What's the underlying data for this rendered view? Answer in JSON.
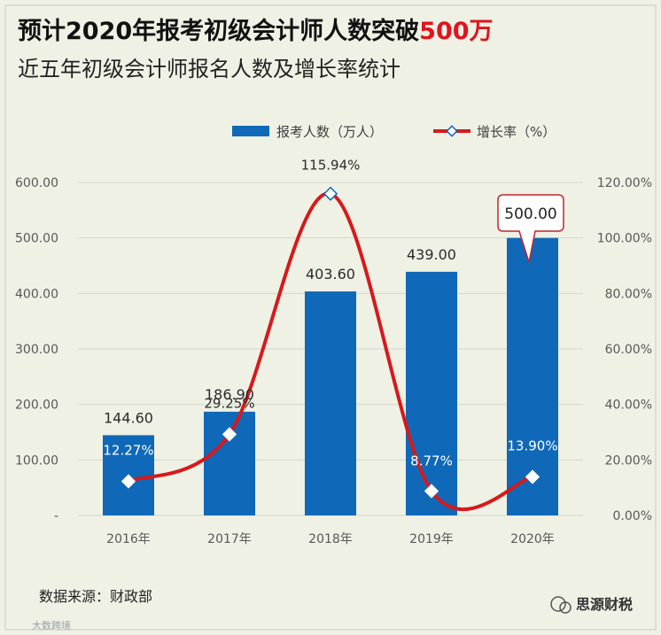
{
  "title": {
    "line1_prefix": "预计2020年报考初级会计师人数突破",
    "line1_highlight": "500万",
    "line2": "近五年初级会计师报名人数及增长率统计"
  },
  "source_note": "数据来源：财政部",
  "watermark_brand": "思源财税",
  "watermark_corner": "大数跨境",
  "callout_value": "500.00",
  "colors": {
    "bar": "#1068b8",
    "line": "#d7191c",
    "highlight": "#e0141e",
    "background": "#eef1e4"
  },
  "chart_data": {
    "type": "bar",
    "categories": [
      "2016年",
      "2017年",
      "2018年",
      "2019年",
      "2020年"
    ],
    "series": [
      {
        "name": "报考人数（万人）",
        "type": "bar",
        "axis": "left",
        "values": [
          144.6,
          186.9,
          403.6,
          439.0,
          500.0
        ],
        "labels": [
          "144.60",
          "186.90",
          "403.60",
          "439.00",
          "500.00"
        ]
      },
      {
        "name": "增长率（%）",
        "type": "line",
        "axis": "right",
        "values": [
          12.27,
          29.25,
          115.94,
          8.77,
          13.9
        ],
        "labels": [
          "12.27%",
          "29.25%",
          "115.94%",
          "8.77%",
          "13.90%"
        ]
      }
    ],
    "y_left": {
      "range": [
        0,
        600
      ],
      "ticks": [
        0,
        100,
        200,
        300,
        400,
        500,
        600
      ],
      "tick_labels": [
        "-",
        "100.00",
        "200.00",
        "300.00",
        "400.00",
        "500.00",
        "600.00"
      ]
    },
    "y_right": {
      "range": [
        0,
        120
      ],
      "ticks": [
        0,
        20,
        40,
        60,
        80,
        100,
        120
      ],
      "tick_labels": [
        "0.00%",
        "20.00%",
        "40.00%",
        "60.00%",
        "80.00%",
        "100.00%",
        "120.00%"
      ]
    },
    "grid": true,
    "legend_position": "top"
  }
}
